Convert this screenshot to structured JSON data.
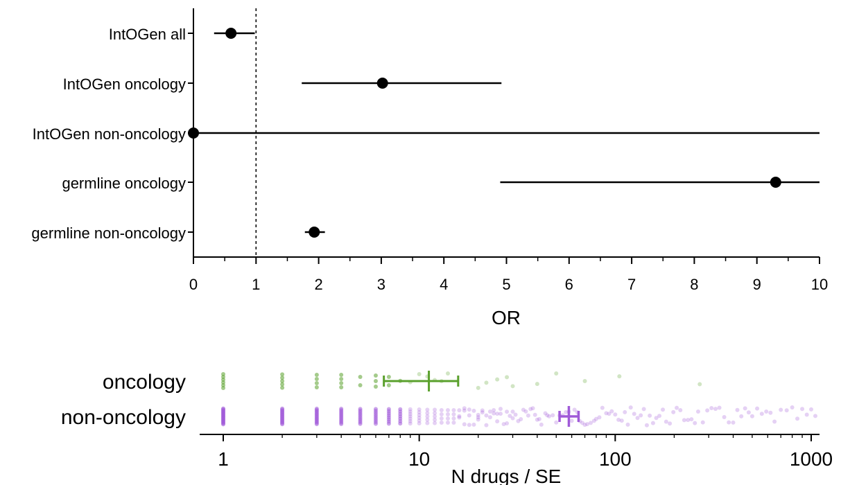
{
  "chart_data": [
    {
      "type": "scatter",
      "subtype": "forest-plot",
      "title": "",
      "xlabel": "OR",
      "ylabel": "",
      "xlim": [
        0,
        10
      ],
      "x_ticks": [
        0,
        1,
        2,
        3,
        4,
        5,
        6,
        7,
        8,
        9,
        10
      ],
      "reference_line": 1,
      "grid": false,
      "categories": [
        "IntOGen all",
        "IntOGen oncology",
        "IntOGen non-oncology",
        "germline oncology",
        "germline non-oncology"
      ],
      "estimates": [
        0.6,
        3.02,
        0.0,
        9.3,
        1.93
      ],
      "ci_low": [
        0.33,
        1.73,
        0.0,
        4.9,
        1.78
      ],
      "ci_high": [
        0.98,
        4.92,
        10.0,
        10.0,
        2.1
      ]
    },
    {
      "type": "scatter",
      "subtype": "strip-plot",
      "title": "",
      "xlabel": "N drugs / SE",
      "x_scale": "log",
      "xlim": [
        1,
        1100
      ],
      "x_ticks": [
        1,
        10,
        100,
        1000
      ],
      "categories": [
        "oncology",
        "non-oncology"
      ],
      "colors": {
        "oncology": "#5aa02c",
        "non-oncology": "#a05ad8"
      },
      "summary": [
        {
          "name": "oncology",
          "center": 11.2,
          "low": 6.6,
          "high": 15.8
        },
        {
          "name": "non-oncology",
          "center": 58,
          "low": 52,
          "high": 65
        }
      ],
      "series": [
        {
          "name": "oncology",
          "values": [
            1,
            1,
            1,
            1,
            1,
            1,
            2,
            2,
            2,
            2,
            2,
            3,
            3,
            3,
            3,
            4,
            4,
            4,
            4,
            5,
            5,
            6,
            6,
            6,
            7,
            7,
            8,
            9,
            10,
            11,
            12,
            13,
            14,
            20,
            22,
            25,
            28,
            30,
            40,
            50,
            70,
            105,
            270
          ]
        },
        {
          "name": "non-oncology",
          "values": [
            1,
            1,
            1,
            1,
            1,
            1,
            1,
            1,
            1,
            1,
            1,
            1,
            1,
            1,
            1,
            1,
            1,
            1,
            1,
            1,
            2,
            2,
            2,
            2,
            2,
            2,
            2,
            2,
            2,
            2,
            2,
            2,
            2,
            2,
            2,
            2,
            3,
            3,
            3,
            3,
            3,
            3,
            3,
            3,
            3,
            3,
            3,
            3,
            3,
            3,
            4,
            4,
            4,
            4,
            4,
            4,
            4,
            4,
            4,
            4,
            4,
            4,
            5,
            5,
            5,
            5,
            5,
            5,
            5,
            5,
            5,
            5,
            6,
            6,
            6,
            6,
            6,
            6,
            6,
            6,
            6,
            7,
            7,
            7,
            7,
            7,
            7,
            7,
            7,
            8,
            8,
            8,
            8,
            8,
            8,
            8,
            9,
            9,
            9,
            9,
            9,
            9,
            9,
            10,
            10,
            10,
            10,
            10,
            10,
            11,
            11,
            11,
            11,
            11,
            12,
            12,
            12,
            12,
            12,
            13,
            13,
            13,
            13,
            14,
            14,
            14,
            14,
            15,
            15,
            15,
            15,
            16,
            16,
            16,
            17,
            17,
            17,
            18,
            18,
            18,
            19,
            19,
            20,
            20,
            20,
            21,
            21,
            22,
            22,
            23,
            23,
            24,
            24,
            25,
            25,
            26,
            26,
            27,
            28,
            28,
            29,
            30,
            30,
            31,
            32,
            33,
            34,
            35,
            36,
            37,
            38,
            39,
            40,
            41,
            42,
            44,
            45,
            46,
            48,
            50,
            52,
            54,
            56,
            58,
            60,
            62,
            64,
            66,
            68,
            70,
            72,
            75,
            78,
            80,
            83,
            86,
            90,
            93,
            96,
            100,
            104,
            108,
            112,
            116,
            120,
            125,
            130,
            135,
            140,
            145,
            150,
            156,
            162,
            168,
            175,
            182,
            190,
            198,
            206,
            215,
            225,
            235,
            245,
            255,
            265,
            280,
            295,
            310,
            325,
            340,
            360,
            380,
            400,
            420,
            440,
            460,
            480,
            500,
            530,
            560,
            590,
            620,
            650,
            700,
            750,
            800,
            850,
            900,
            950,
            1000,
            1050
          ]
        }
      ]
    }
  ]
}
